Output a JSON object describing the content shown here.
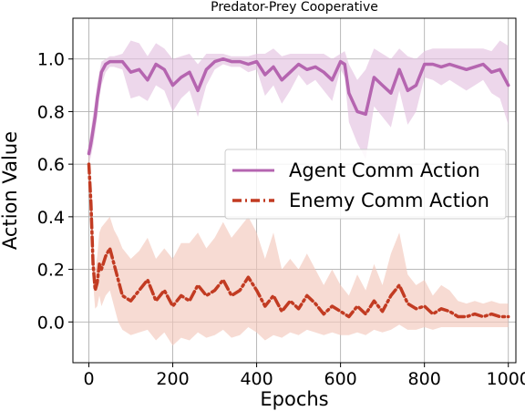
{
  "chart_data": {
    "type": "line",
    "title": "Predator-Prey Cooperative",
    "xlabel": "Epochs",
    "ylabel": "Action Value",
    "xlim": [
      -38,
      1018
    ],
    "ylim": [
      -0.155,
      1.155
    ],
    "xticks": [
      0,
      200,
      400,
      600,
      800,
      1000
    ],
    "yticks": [
      0.0,
      0.2,
      0.4,
      0.6,
      0.8,
      1.0
    ],
    "xtick_labels": [
      "0",
      "200",
      "400",
      "600",
      "800",
      "1000"
    ],
    "ytick_labels": [
      "0.0",
      "0.2",
      "0.4",
      "0.6",
      "0.8",
      "1.0"
    ],
    "grid": true,
    "legend_position": "center-right",
    "series": [
      {
        "name": "Agent Comm Action",
        "color": "#b565b0",
        "band_color": "#e3c2e0",
        "line_style": "solid",
        "x": [
          0,
          5,
          10,
          15,
          20,
          25,
          30,
          40,
          50,
          60,
          80,
          100,
          120,
          140,
          160,
          180,
          200,
          220,
          240,
          260,
          280,
          300,
          320,
          340,
          360,
          380,
          400,
          420,
          440,
          460,
          480,
          500,
          520,
          540,
          560,
          580,
          600,
          610,
          620,
          640,
          660,
          680,
          700,
          720,
          740,
          760,
          780,
          800,
          820,
          840,
          860,
          880,
          900,
          920,
          940,
          960,
          980,
          1000
        ],
        "y": [
          0.64,
          0.68,
          0.73,
          0.78,
          0.85,
          0.9,
          0.95,
          0.98,
          0.99,
          0.99,
          0.99,
          0.95,
          0.96,
          0.92,
          0.98,
          0.96,
          0.9,
          0.93,
          0.95,
          0.88,
          0.96,
          0.99,
          1.0,
          0.99,
          0.99,
          0.98,
          0.99,
          0.94,
          0.97,
          0.92,
          0.95,
          0.98,
          0.96,
          0.97,
          0.95,
          0.92,
          0.99,
          0.98,
          0.87,
          0.8,
          0.79,
          0.93,
          0.9,
          0.87,
          0.96,
          0.88,
          0.9,
          0.98,
          0.98,
          0.97,
          0.98,
          0.97,
          0.96,
          0.97,
          0.98,
          0.95,
          0.96,
          0.9
        ],
        "lower": [
          0.6,
          0.63,
          0.67,
          0.72,
          0.78,
          0.85,
          0.9,
          0.95,
          0.97,
          0.97,
          0.96,
          0.85,
          0.86,
          0.84,
          0.9,
          0.88,
          0.8,
          0.85,
          0.88,
          0.78,
          0.9,
          0.96,
          0.98,
          0.97,
          0.97,
          0.95,
          0.96,
          0.86,
          0.9,
          0.83,
          0.88,
          0.94,
          0.9,
          0.92,
          0.88,
          0.84,
          0.96,
          0.93,
          0.76,
          0.68,
          0.62,
          0.82,
          0.78,
          0.74,
          0.88,
          0.75,
          0.8,
          0.93,
          0.92,
          0.9,
          0.92,
          0.9,
          0.88,
          0.9,
          0.92,
          0.87,
          0.85,
          0.75
        ],
        "upper": [
          0.68,
          0.73,
          0.79,
          0.84,
          0.91,
          0.95,
          0.99,
          1.0,
          1.01,
          1.01,
          1.02,
          1.07,
          1.06,
          1.01,
          1.06,
          1.04,
          1.0,
          1.01,
          1.02,
          0.98,
          1.02,
          1.02,
          1.02,
          1.01,
          1.01,
          1.01,
          1.02,
          1.02,
          1.04,
          1.01,
          1.02,
          1.02,
          1.02,
          1.02,
          1.02,
          1.0,
          1.02,
          1.03,
          0.98,
          0.92,
          0.96,
          1.04,
          1.02,
          1.0,
          1.04,
          1.01,
          1.0,
          1.03,
          1.04,
          1.04,
          1.04,
          1.04,
          1.04,
          1.04,
          1.04,
          1.03,
          1.07,
          1.05
        ]
      },
      {
        "name": "Enemy Comm Action",
        "color": "#c23b22",
        "band_color": "#f2c8bb",
        "line_style": "dashdot",
        "x": [
          0,
          5,
          10,
          15,
          20,
          25,
          30,
          40,
          50,
          60,
          70,
          80,
          100,
          120,
          140,
          160,
          180,
          200,
          220,
          240,
          260,
          280,
          300,
          320,
          340,
          360,
          380,
          400,
          420,
          440,
          460,
          480,
          500,
          520,
          540,
          560,
          580,
          600,
          620,
          640,
          660,
          680,
          700,
          720,
          740,
          760,
          780,
          800,
          820,
          840,
          860,
          880,
          900,
          920,
          940,
          960,
          980,
          1000
        ],
        "y": [
          0.6,
          0.45,
          0.22,
          0.12,
          0.15,
          0.22,
          0.2,
          0.25,
          0.28,
          0.22,
          0.16,
          0.1,
          0.08,
          0.12,
          0.16,
          0.08,
          0.12,
          0.06,
          0.1,
          0.08,
          0.14,
          0.1,
          0.12,
          0.16,
          0.1,
          0.12,
          0.17,
          0.12,
          0.06,
          0.1,
          0.04,
          0.08,
          0.05,
          0.1,
          0.07,
          0.03,
          0.06,
          0.04,
          0.02,
          0.06,
          0.03,
          0.08,
          0.04,
          0.1,
          0.14,
          0.07,
          0.05,
          0.06,
          0.03,
          0.05,
          0.04,
          0.02,
          0.02,
          0.03,
          0.02,
          0.03,
          0.02,
          0.02
        ],
        "lower": [
          0.55,
          0.38,
          0.15,
          0.05,
          0.06,
          0.1,
          0.06,
          0.1,
          0.12,
          0.06,
          0.0,
          -0.03,
          -0.05,
          -0.04,
          -0.03,
          -0.07,
          -0.04,
          -0.09,
          -0.06,
          -0.07,
          -0.04,
          -0.06,
          -0.05,
          -0.03,
          -0.06,
          -0.05,
          -0.02,
          -0.04,
          -0.07,
          -0.05,
          -0.06,
          -0.04,
          -0.05,
          -0.03,
          -0.04,
          -0.05,
          -0.04,
          -0.05,
          -0.05,
          -0.04,
          -0.05,
          -0.03,
          -0.04,
          -0.03,
          -0.01,
          -0.03,
          -0.03,
          -0.02,
          -0.03,
          -0.02,
          -0.02,
          -0.02,
          -0.02,
          -0.02,
          -0.02,
          -0.02,
          -0.02,
          -0.02
        ],
        "upper": [
          0.65,
          0.52,
          0.3,
          0.2,
          0.25,
          0.34,
          0.36,
          0.38,
          0.4,
          0.35,
          0.32,
          0.28,
          0.24,
          0.27,
          0.32,
          0.24,
          0.28,
          0.24,
          0.3,
          0.3,
          0.34,
          0.28,
          0.32,
          0.38,
          0.32,
          0.36,
          0.4,
          0.34,
          0.24,
          0.34,
          0.2,
          0.24,
          0.2,
          0.26,
          0.2,
          0.14,
          0.2,
          0.14,
          0.1,
          0.18,
          0.12,
          0.22,
          0.14,
          0.26,
          0.34,
          0.18,
          0.14,
          0.16,
          0.1,
          0.14,
          0.12,
          0.08,
          0.07,
          0.08,
          0.07,
          0.08,
          0.07,
          0.07
        ]
      }
    ]
  }
}
